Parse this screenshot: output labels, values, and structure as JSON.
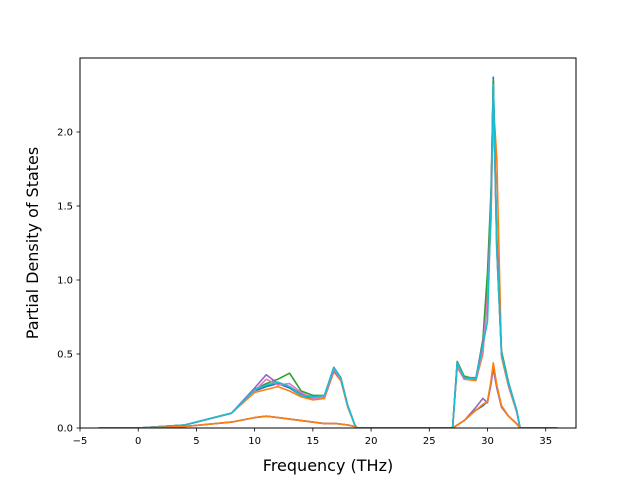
{
  "chart_data": {
    "type": "line",
    "title": "",
    "xlabel": "Frequency (THz)",
    "ylabel": "Partial Density of States",
    "xlim": [
      -5.0,
      37.6
    ],
    "ylim": [
      0.0,
      2.5
    ],
    "xticks": [
      -5,
      0,
      5,
      10,
      15,
      20,
      25,
      30,
      35
    ],
    "yticks": [
      0.0,
      0.5,
      1.0,
      1.5,
      2.0
    ],
    "xtick_labels": [
      "−5",
      "0",
      "5",
      "10",
      "15",
      "20",
      "25",
      "30",
      "35"
    ],
    "ytick_labels": [
      "0.0",
      "0.5",
      "1.0",
      "1.5",
      "2.0"
    ],
    "grid": false,
    "legend": "none",
    "series": [
      {
        "color": "#1f77b4",
        "x": [
          -3.4,
          0,
          4,
          8,
          10,
          11,
          12,
          13,
          14,
          15,
          16,
          16.8,
          17.4,
          18,
          18.6,
          18.8,
          27,
          27.4,
          28,
          29,
          29.6,
          30,
          30.3,
          30.5,
          30.8,
          31.2,
          31.8,
          32.5,
          32.8,
          36
        ],
        "y": [
          0,
          0,
          0.02,
          0.1,
          0.25,
          0.28,
          0.3,
          0.27,
          0.22,
          0.2,
          0.22,
          0.4,
          0.33,
          0.15,
          0.02,
          0,
          0,
          0.43,
          0.34,
          0.33,
          0.55,
          0.95,
          1.5,
          2.37,
          1.2,
          0.5,
          0.3,
          0.12,
          0,
          0
        ]
      },
      {
        "color": "#ff7f0e",
        "x": [
          -3.4,
          0,
          4,
          8,
          10,
          11,
          12,
          13,
          14,
          15,
          16,
          16.8,
          17.4,
          18,
          18.6,
          18.8,
          27,
          27.4,
          28,
          29,
          29.6,
          30,
          30.3,
          30.5,
          30.8,
          31.2,
          31.8,
          32.5,
          32.8,
          36
        ],
        "y": [
          0,
          0,
          0.02,
          0.1,
          0.24,
          0.26,
          0.28,
          0.25,
          0.21,
          0.19,
          0.2,
          0.38,
          0.32,
          0.14,
          0.02,
          0,
          0,
          0.41,
          0.33,
          0.32,
          0.5,
          0.9,
          1.4,
          2.2,
          1.82,
          0.48,
          0.28,
          0.11,
          0,
          0
        ]
      },
      {
        "color": "#2ca02c",
        "x": [
          -3.4,
          0,
          4,
          8,
          10,
          11,
          12,
          13,
          14,
          15,
          16,
          16.8,
          17.4,
          18,
          18.6,
          18.8,
          27,
          27.4,
          28,
          29,
          29.6,
          30,
          30.3,
          30.5,
          30.8,
          31.2,
          31.8,
          32.5,
          32.8,
          36
        ],
        "y": [
          0,
          0,
          0.02,
          0.1,
          0.26,
          0.3,
          0.33,
          0.37,
          0.25,
          0.22,
          0.22,
          0.41,
          0.34,
          0.15,
          0.02,
          0,
          0,
          0.45,
          0.35,
          0.33,
          0.6,
          1.05,
          1.6,
          2.35,
          1.25,
          0.52,
          0.31,
          0.12,
          0,
          0
        ]
      },
      {
        "color": "#9467bd",
        "x": [
          -3.4,
          0,
          4,
          8,
          10,
          11,
          12,
          13,
          14,
          15,
          16,
          16.8,
          17.4,
          18,
          18.6,
          18.8,
          27,
          27.4,
          28,
          29,
          29.6,
          30,
          30.3,
          30.5,
          30.8,
          31.2,
          31.8,
          32.5,
          32.8,
          36
        ],
        "y": [
          0,
          0,
          0.02,
          0.1,
          0.27,
          0.36,
          0.3,
          0.28,
          0.23,
          0.21,
          0.21,
          0.39,
          0.33,
          0.15,
          0.02,
          0,
          0,
          0.44,
          0.34,
          0.34,
          0.58,
          0.85,
          1.55,
          2.3,
          1.3,
          0.5,
          0.3,
          0.12,
          0,
          0
        ]
      },
      {
        "color": "#e377c2",
        "x": [
          -3.4,
          0,
          4,
          8,
          10,
          11,
          12,
          13,
          14,
          15,
          16,
          16.8,
          17.4,
          18,
          18.6,
          18.8,
          27,
          27.4,
          28,
          29,
          29.6,
          30,
          30.3,
          30.5,
          30.8,
          31.2,
          31.8,
          32.5,
          32.8,
          36
        ],
        "y": [
          0,
          0,
          0.02,
          0.1,
          0.25,
          0.33,
          0.29,
          0.3,
          0.24,
          0.2,
          0.21,
          0.4,
          0.33,
          0.15,
          0.02,
          0,
          0,
          0.42,
          0.33,
          0.33,
          0.52,
          0.88,
          1.45,
          2.25,
          1.2,
          0.5,
          0.29,
          0.11,
          0,
          0
        ]
      },
      {
        "color": "#17becf",
        "x": [
          -3.4,
          0,
          4,
          8,
          10,
          11,
          12,
          13,
          14,
          15,
          16,
          16.8,
          17.4,
          18,
          18.6,
          18.8,
          27,
          27.4,
          28,
          29,
          29.6,
          30,
          30.3,
          30.5,
          30.8,
          31.2,
          31.8,
          32.5,
          32.8,
          36
        ],
        "y": [
          0,
          0,
          0.02,
          0.1,
          0.26,
          0.29,
          0.31,
          0.28,
          0.22,
          0.21,
          0.22,
          0.41,
          0.34,
          0.15,
          0.02,
          0,
          0,
          0.44,
          0.34,
          0.33,
          0.56,
          0.72,
          1.5,
          2.32,
          1.22,
          0.5,
          0.3,
          0.12,
          0,
          0
        ]
      },
      {
        "color": "#1f77b4",
        "x": [
          -3.4,
          0,
          4,
          8,
          10,
          11,
          12,
          13,
          14,
          15,
          16,
          17,
          18,
          18.6,
          18.8,
          27,
          28,
          29,
          29.6,
          30,
          30.3,
          30.5,
          30.8,
          31.2,
          31.8,
          32.5,
          32.8,
          36
        ],
        "y": [
          0,
          0,
          0.01,
          0.04,
          0.07,
          0.08,
          0.07,
          0.06,
          0.05,
          0.04,
          0.03,
          0.03,
          0.02,
          0.01,
          0,
          0,
          0.05,
          0.12,
          0.15,
          0.18,
          0.3,
          0.42,
          0.28,
          0.15,
          0.08,
          0.03,
          0,
          0
        ]
      },
      {
        "color": "#9467bd",
        "x": [
          -3.4,
          0,
          4,
          8,
          10,
          11,
          12,
          13,
          14,
          15,
          16,
          17,
          18,
          18.6,
          18.8,
          27,
          28,
          29,
          29.6,
          30,
          30.3,
          30.5,
          30.8,
          31.2,
          31.8,
          32.5,
          32.8,
          36
        ],
        "y": [
          0,
          0,
          0.01,
          0.04,
          0.07,
          0.08,
          0.07,
          0.06,
          0.05,
          0.04,
          0.03,
          0.03,
          0.02,
          0.01,
          0,
          0,
          0.05,
          0.14,
          0.2,
          0.17,
          0.3,
          0.4,
          0.27,
          0.14,
          0.08,
          0.03,
          0,
          0
        ]
      },
      {
        "color": "#ff7f0e",
        "x": [
          -3.4,
          0,
          4,
          8,
          10,
          11,
          12,
          13,
          14,
          15,
          16,
          17,
          18,
          18.6,
          18.8,
          27,
          28,
          29,
          29.6,
          30,
          30.3,
          30.5,
          30.8,
          31.2,
          31.8,
          32.5,
          32.8,
          36
        ],
        "y": [
          0,
          0,
          0.01,
          0.04,
          0.07,
          0.08,
          0.07,
          0.06,
          0.05,
          0.04,
          0.03,
          0.03,
          0.02,
          0.01,
          0,
          0,
          0.05,
          0.12,
          0.16,
          0.18,
          0.32,
          0.44,
          0.29,
          0.15,
          0.08,
          0.03,
          0,
          0
        ]
      }
    ]
  }
}
